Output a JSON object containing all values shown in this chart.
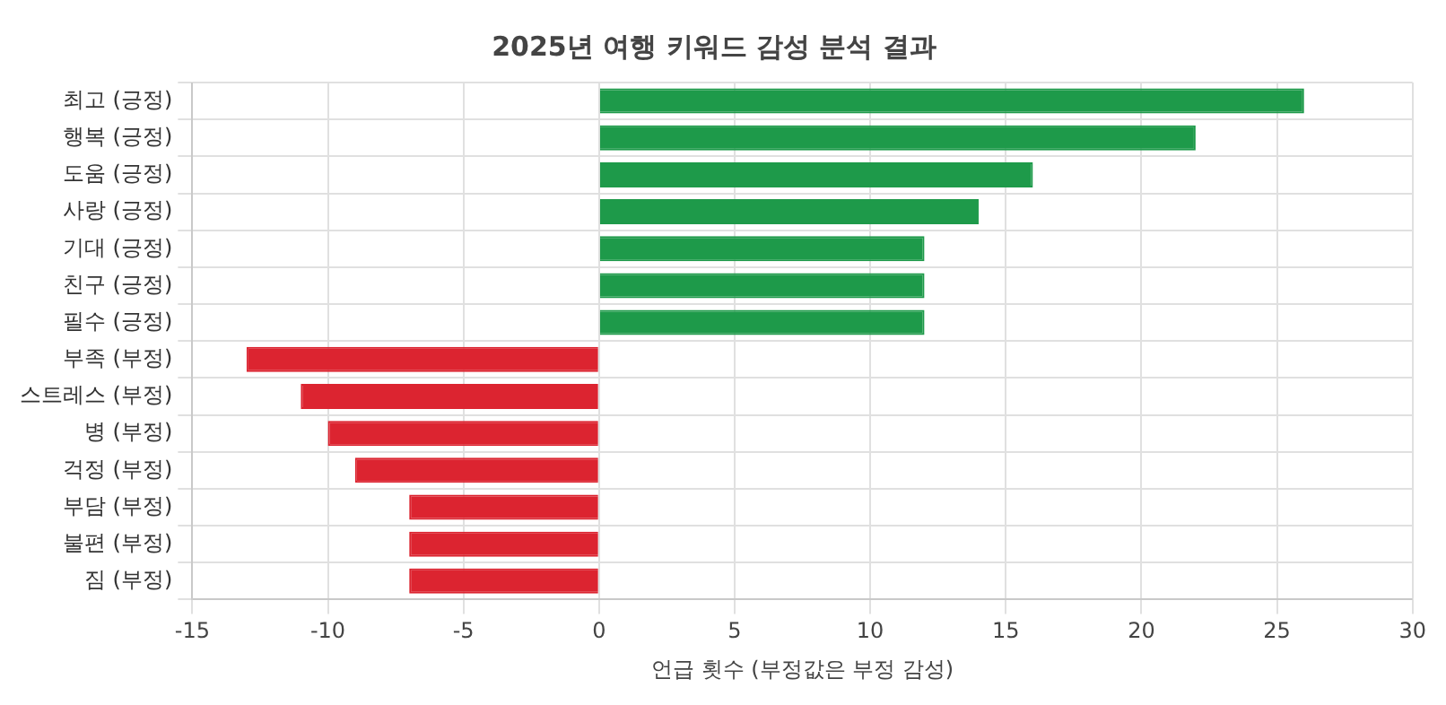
{
  "chart_data": {
    "type": "bar",
    "orientation": "horizontal",
    "title": "2025년 여행 키워드 감성 분석 결과",
    "xlabel": "언급 횟수 (부정값은 부정 감성)",
    "categories": [
      "최고 (긍정)",
      "행복 (긍정)",
      "도움 (긍정)",
      "사랑 (긍정)",
      "기대 (긍정)",
      "친구 (긍정)",
      "필수 (긍정)",
      "부족 (부정)",
      "스트레스 (부정)",
      "병 (부정)",
      "걱정 (부정)",
      "부담 (부정)",
      "불편 (부정)",
      "짐 (부정)"
    ],
    "values": [
      26,
      22,
      16,
      14,
      12,
      12,
      12,
      -13,
      -11,
      -10,
      -9,
      -7,
      -7,
      -7
    ],
    "colors": [
      "#1e9a4a",
      "#1e9a4a",
      "#1e9a4a",
      "#1e9a4a",
      "#1e9a4a",
      "#1e9a4a",
      "#1e9a4a",
      "#dc2430",
      "#dc2430",
      "#dc2430",
      "#dc2430",
      "#dc2430",
      "#dc2430",
      "#dc2430"
    ],
    "xlim": [
      -15,
      30
    ],
    "xticks": [
      -15,
      -10,
      -5,
      0,
      5,
      10,
      15,
      20,
      25,
      30
    ],
    "grid": true,
    "legend": false
  }
}
